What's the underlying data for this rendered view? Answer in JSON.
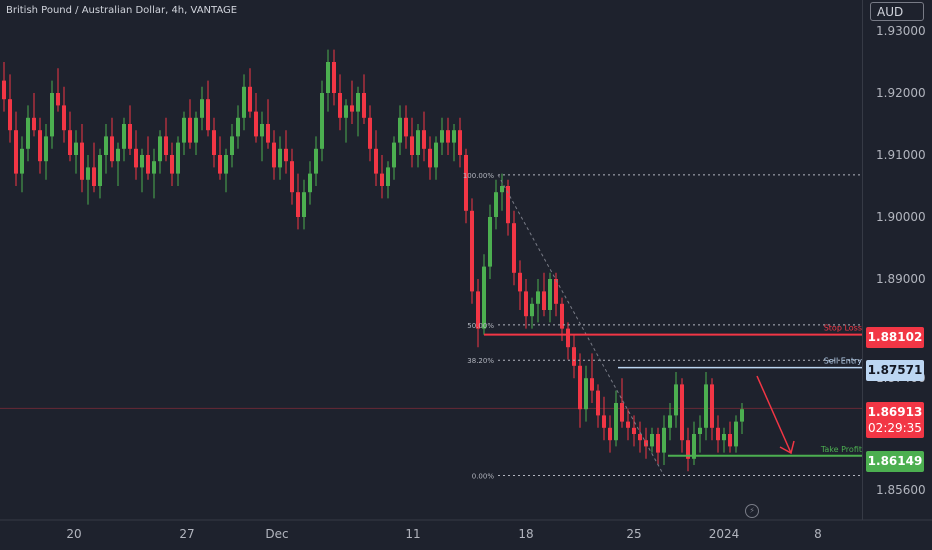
{
  "title": "British Pound / Australian Dollar, 4h, VANTAGE",
  "currency": "AUD",
  "colors": {
    "background": "#1e222d",
    "up": "#4caf50",
    "down": "#f23645",
    "stop": "#f23645",
    "entry": "#bcd6f2",
    "take_profit": "#4caf50",
    "grid_text": "#b2b5be"
  },
  "chart_data": {
    "type": "candlestick",
    "symbol": "GBPAUD",
    "timeframe": "4h",
    "y_ticks": [
      "1.93000",
      "1.92000",
      "1.91000",
      "1.90000",
      "1.89000",
      "1.87400",
      "1.85600"
    ],
    "x_ticks": [
      "20",
      "27",
      "Dec",
      "11",
      "18",
      "25",
      "2024",
      "8"
    ],
    "fib_levels": [
      {
        "label": "100.00%",
        "value": 1.9068
      },
      {
        "label": "50.00%",
        "value": 1.8826
      },
      {
        "label": "38.20%",
        "value": 1.8769
      },
      {
        "label": "0.00%",
        "value": 1.8583
      }
    ],
    "levels": {
      "stop_loss": {
        "label": "Stop Loss",
        "value": 1.88102,
        "text": "1.88102"
      },
      "sell_entry": {
        "label": "Sell Entry",
        "value": 1.87571,
        "text": "1.87571"
      },
      "take_profit": {
        "label": "Take Profit",
        "value": 1.86149,
        "text": "1.86149"
      }
    },
    "last_price": {
      "value": 1.86913,
      "text": "1.86913",
      "countdown": "02:29:35"
    },
    "candles": [
      [
        1.922,
        1.925,
        1.917,
        1.919
      ],
      [
        1.919,
        1.923,
        1.912,
        1.914
      ],
      [
        1.914,
        1.917,
        1.905,
        1.907
      ],
      [
        1.907,
        1.913,
        1.904,
        1.911
      ],
      [
        1.911,
        1.918,
        1.909,
        1.916
      ],
      [
        1.916,
        1.92,
        1.913,
        1.914
      ],
      [
        1.914,
        1.916,
        1.907,
        1.909
      ],
      [
        1.909,
        1.915,
        1.906,
        1.913
      ],
      [
        1.913,
        1.922,
        1.911,
        1.92
      ],
      [
        1.92,
        1.924,
        1.917,
        1.918
      ],
      [
        1.918,
        1.921,
        1.912,
        1.914
      ],
      [
        1.914,
        1.917,
        1.909,
        1.91
      ],
      [
        1.91,
        1.914,
        1.907,
        1.912
      ],
      [
        1.912,
        1.915,
        1.904,
        1.906
      ],
      [
        1.906,
        1.91,
        1.902,
        1.908
      ],
      [
        1.908,
        1.912,
        1.904,
        1.905
      ],
      [
        1.905,
        1.911,
        1.903,
        1.91
      ],
      [
        1.91,
        1.915,
        1.907,
        1.913
      ],
      [
        1.913,
        1.916,
        1.908,
        1.909
      ],
      [
        1.909,
        1.912,
        1.905,
        1.911
      ],
      [
        1.911,
        1.916,
        1.909,
        1.915
      ],
      [
        1.915,
        1.918,
        1.91,
        1.911
      ],
      [
        1.911,
        1.914,
        1.906,
        1.908
      ],
      [
        1.908,
        1.911,
        1.904,
        1.91
      ],
      [
        1.91,
        1.913,
        1.906,
        1.907
      ],
      [
        1.907,
        1.911,
        1.903,
        1.909
      ],
      [
        1.909,
        1.914,
        1.907,
        1.913
      ],
      [
        1.913,
        1.916,
        1.909,
        1.91
      ],
      [
        1.91,
        1.912,
        1.905,
        1.907
      ],
      [
        1.907,
        1.913,
        1.905,
        1.912
      ],
      [
        1.912,
        1.917,
        1.91,
        1.916
      ],
      [
        1.916,
        1.919,
        1.911,
        1.912
      ],
      [
        1.912,
        1.917,
        1.91,
        1.916
      ],
      [
        1.916,
        1.921,
        1.914,
        1.919
      ],
      [
        1.919,
        1.922,
        1.913,
        1.914
      ],
      [
        1.914,
        1.916,
        1.908,
        1.91
      ],
      [
        1.91,
        1.913,
        1.906,
        1.907
      ],
      [
        1.907,
        1.911,
        1.904,
        1.91
      ],
      [
        1.91,
        1.915,
        1.908,
        1.913
      ],
      [
        1.913,
        1.918,
        1.911,
        1.916
      ],
      [
        1.916,
        1.923,
        1.914,
        1.921
      ],
      [
        1.921,
        1.924,
        1.916,
        1.917
      ],
      [
        1.917,
        1.92,
        1.912,
        1.913
      ],
      [
        1.913,
        1.917,
        1.909,
        1.915
      ],
      [
        1.915,
        1.919,
        1.911,
        1.912
      ],
      [
        1.912,
        1.914,
        1.906,
        1.908
      ],
      [
        1.908,
        1.913,
        1.906,
        1.911
      ],
      [
        1.911,
        1.914,
        1.907,
        1.909
      ],
      [
        1.909,
        1.911,
        1.902,
        1.904
      ],
      [
        1.904,
        1.907,
        1.898,
        1.9
      ],
      [
        1.9,
        1.906,
        1.898,
        1.904
      ],
      [
        1.904,
        1.909,
        1.902,
        1.907
      ],
      [
        1.907,
        1.913,
        1.905,
        1.911
      ],
      [
        1.911,
        1.922,
        1.909,
        1.92
      ],
      [
        1.92,
        1.927,
        1.917,
        1.925
      ],
      [
        1.925,
        1.927,
        1.918,
        1.92
      ],
      [
        1.92,
        1.923,
        1.914,
        1.916
      ],
      [
        1.916,
        1.919,
        1.912,
        1.918
      ],
      [
        1.918,
        1.922,
        1.915,
        1.917
      ],
      [
        1.917,
        1.921,
        1.913,
        1.92
      ],
      [
        1.92,
        1.923,
        1.915,
        1.916
      ],
      [
        1.916,
        1.918,
        1.909,
        1.911
      ],
      [
        1.911,
        1.914,
        1.905,
        1.907
      ],
      [
        1.907,
        1.91,
        1.903,
        1.905
      ],
      [
        1.905,
        1.909,
        1.903,
        1.908
      ],
      [
        1.908,
        1.913,
        1.906,
        1.912
      ],
      [
        1.912,
        1.918,
        1.91,
        1.916
      ],
      [
        1.916,
        1.918,
        1.911,
        1.913
      ],
      [
        1.913,
        1.916,
        1.908,
        1.91
      ],
      [
        1.91,
        1.915,
        1.908,
        1.914
      ],
      [
        1.914,
        1.917,
        1.909,
        1.911
      ],
      [
        1.911,
        1.913,
        1.906,
        1.908
      ],
      [
        1.908,
        1.913,
        1.906,
        1.912
      ],
      [
        1.912,
        1.916,
        1.91,
        1.914
      ],
      [
        1.914,
        1.916,
        1.91,
        1.912
      ],
      [
        1.912,
        1.915,
        1.909,
        1.914
      ],
      [
        1.914,
        1.916,
        1.908,
        1.91
      ],
      [
        1.91,
        1.911,
        1.899,
        1.901
      ],
      [
        1.901,
        1.903,
        1.886,
        1.888
      ],
      [
        1.888,
        1.89,
        1.879,
        1.882
      ],
      [
        1.882,
        1.894,
        1.881,
        1.892
      ],
      [
        1.892,
        1.902,
        1.89,
        1.9
      ],
      [
        1.9,
        1.906,
        1.898,
        1.904
      ],
      [
        1.904,
        1.907,
        1.901,
        1.905
      ],
      [
        1.905,
        1.906,
        1.897,
        1.899
      ],
      [
        1.899,
        1.901,
        1.889,
        1.891
      ],
      [
        1.891,
        1.893,
        1.885,
        1.888
      ],
      [
        1.888,
        1.89,
        1.882,
        1.884
      ],
      [
        1.884,
        1.887,
        1.882,
        1.886
      ],
      [
        1.886,
        1.89,
        1.883,
        1.888
      ],
      [
        1.888,
        1.891,
        1.884,
        1.885
      ],
      [
        1.885,
        1.891,
        1.883,
        1.89
      ],
      [
        1.89,
        1.891,
        1.884,
        1.886
      ],
      [
        1.886,
        1.887,
        1.88,
        1.882
      ],
      [
        1.882,
        1.883,
        1.877,
        1.879
      ],
      [
        1.879,
        1.881,
        1.874,
        1.876
      ],
      [
        1.876,
        1.878,
        1.866,
        1.869
      ],
      [
        1.869,
        1.876,
        1.867,
        1.874
      ],
      [
        1.874,
        1.878,
        1.87,
        1.872
      ],
      [
        1.872,
        1.873,
        1.866,
        1.868
      ],
      [
        1.868,
        1.871,
        1.864,
        1.866
      ],
      [
        1.866,
        1.868,
        1.862,
        1.864
      ],
      [
        1.864,
        1.872,
        1.863,
        1.87
      ],
      [
        1.87,
        1.874,
        1.866,
        1.867
      ],
      [
        1.867,
        1.869,
        1.864,
        1.866
      ],
      [
        1.866,
        1.868,
        1.863,
        1.865
      ],
      [
        1.865,
        1.867,
        1.862,
        1.864
      ],
      [
        1.864,
        1.866,
        1.861,
        1.863
      ],
      [
        1.863,
        1.866,
        1.862,
        1.865
      ],
      [
        1.865,
        1.866,
        1.86,
        1.862
      ],
      [
        1.862,
        1.868,
        1.86,
        1.866
      ],
      [
        1.866,
        1.87,
        1.864,
        1.868
      ],
      [
        1.868,
        1.875,
        1.866,
        1.873
      ],
      [
        1.873,
        1.874,
        1.862,
        1.864
      ],
      [
        1.864,
        1.866,
        1.859,
        1.861
      ],
      [
        1.861,
        1.867,
        1.86,
        1.865
      ],
      [
        1.865,
        1.868,
        1.862,
        1.866
      ],
      [
        1.866,
        1.875,
        1.864,
        1.873
      ],
      [
        1.873,
        1.874,
        1.864,
        1.866
      ],
      [
        1.866,
        1.868,
        1.862,
        1.864
      ],
      [
        1.864,
        1.866,
        1.862,
        1.865
      ],
      [
        1.865,
        1.867,
        1.862,
        1.863
      ],
      [
        1.863,
        1.868,
        1.862,
        1.867
      ],
      [
        1.867,
        1.87,
        1.865,
        1.869
      ]
    ]
  }
}
